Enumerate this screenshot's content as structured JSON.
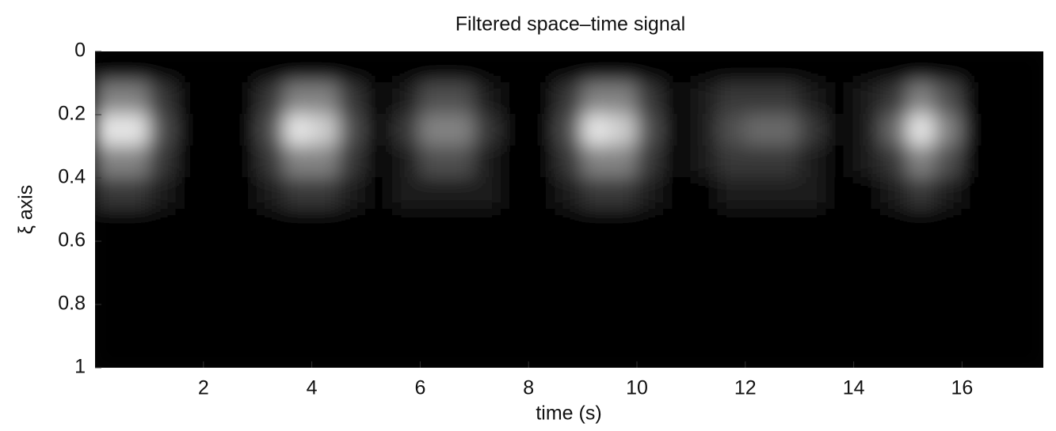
{
  "chart_data": {
    "type": "heatmap",
    "title": "Filtered space–time signal",
    "xlabel": "time (s)",
    "ylabel": "ξ axis",
    "xlim": [
      0,
      17.5
    ],
    "ylim": [
      1,
      0
    ],
    "xticks": [
      2,
      4,
      6,
      8,
      10,
      12,
      14,
      16
    ],
    "yticks": [
      0,
      0.2,
      0.4,
      0.6,
      0.8,
      1
    ],
    "x": [
      0.25,
      0.75,
      1.25,
      1.75,
      2.25,
      2.75,
      3.25,
      3.75,
      4.25,
      4.75,
      5.25,
      5.75,
      6.25,
      6.75,
      7.25,
      7.75,
      8.25,
      8.75,
      9.25,
      9.75,
      10.25,
      10.75,
      11.25,
      11.75,
      12.25,
      12.75,
      13.25,
      13.75,
      14.25,
      14.75,
      15.25,
      15.75,
      16.25,
      16.75,
      17.25
    ],
    "y": [
      0.05,
      0.15,
      0.25,
      0.35,
      0.45,
      0.55,
      0.65,
      0.75,
      0.85,
      0.95
    ],
    "z": [
      [
        0,
        0,
        0,
        0,
        0,
        0,
        0,
        0,
        0,
        0,
        0,
        0,
        0,
        0,
        0,
        0,
        0,
        0,
        0,
        0,
        0,
        0,
        0,
        0,
        0,
        0,
        0,
        0,
        0,
        0,
        0,
        0,
        0,
        0,
        0
      ],
      [
        0.5,
        0.5,
        0.2,
        0,
        0,
        0,
        0.2,
        0.5,
        0.5,
        0.2,
        0,
        0.1,
        0.3,
        0.3,
        0.1,
        0,
        0,
        0.2,
        0.5,
        0.5,
        0.2,
        0,
        0.1,
        0.2,
        0.2,
        0.2,
        0.1,
        0,
        0.1,
        0.2,
        0.5,
        0.3,
        0,
        0,
        0
      ],
      [
        0.9,
        0.9,
        0.3,
        0,
        0,
        0,
        0.3,
        0.9,
        0.8,
        0.3,
        0,
        0.2,
        0.5,
        0.5,
        0.2,
        0,
        0,
        0.3,
        0.9,
        0.8,
        0.3,
        0,
        0.1,
        0.3,
        0.4,
        0.4,
        0.2,
        0,
        0.1,
        0.4,
        0.9,
        0.5,
        0,
        0,
        0
      ],
      [
        0.5,
        0.5,
        0.2,
        0,
        0,
        0,
        0.2,
        0.5,
        0.5,
        0.2,
        0,
        0.1,
        0.3,
        0.3,
        0.1,
        0,
        0,
        0.2,
        0.5,
        0.5,
        0.2,
        0,
        0.1,
        0.2,
        0.2,
        0.2,
        0.1,
        0,
        0.1,
        0.2,
        0.5,
        0.3,
        0,
        0,
        0
      ],
      [
        0.2,
        0.2,
        0.1,
        0,
        0,
        0,
        0.1,
        0.2,
        0.2,
        0.1,
        0,
        0.1,
        0.1,
        0.1,
        0.1,
        0,
        0,
        0.1,
        0.2,
        0.2,
        0.1,
        0,
        0,
        0.1,
        0.1,
        0.1,
        0.1,
        0,
        0,
        0.1,
        0.2,
        0.1,
        0,
        0,
        0
      ],
      [
        0,
        0,
        0,
        0,
        0,
        0,
        0,
        0,
        0,
        0,
        0,
        0,
        0,
        0,
        0,
        0,
        0,
        0,
        0,
        0,
        0,
        0,
        0,
        0,
        0,
        0,
        0,
        0,
        0,
        0,
        0,
        0,
        0,
        0,
        0
      ],
      [
        0,
        0,
        0,
        0,
        0,
        0,
        0,
        0,
        0,
        0,
        0,
        0,
        0,
        0,
        0,
        0,
        0,
        0,
        0,
        0,
        0,
        0,
        0,
        0,
        0,
        0,
        0,
        0,
        0,
        0,
        0,
        0,
        0,
        0,
        0
      ],
      [
        0,
        0,
        0,
        0,
        0,
        0,
        0,
        0,
        0,
        0,
        0,
        0,
        0,
        0,
        0,
        0,
        0,
        0,
        0,
        0,
        0,
        0,
        0,
        0,
        0,
        0,
        0,
        0,
        0,
        0,
        0,
        0,
        0,
        0,
        0
      ],
      [
        0,
        0,
        0,
        0,
        0,
        0,
        0,
        0,
        0,
        0,
        0,
        0,
        0,
        0,
        0,
        0,
        0,
        0,
        0,
        0,
        0,
        0,
        0,
        0,
        0,
        0,
        0,
        0,
        0,
        0,
        0,
        0,
        0,
        0,
        0
      ],
      [
        0,
        0,
        0,
        0,
        0,
        0,
        0,
        0,
        0,
        0,
        0,
        0,
        0,
        0,
        0,
        0,
        0,
        0,
        0,
        0,
        0,
        0,
        0,
        0,
        0,
        0,
        0,
        0,
        0,
        0,
        0,
        0,
        0,
        0,
        0
      ]
    ]
  }
}
